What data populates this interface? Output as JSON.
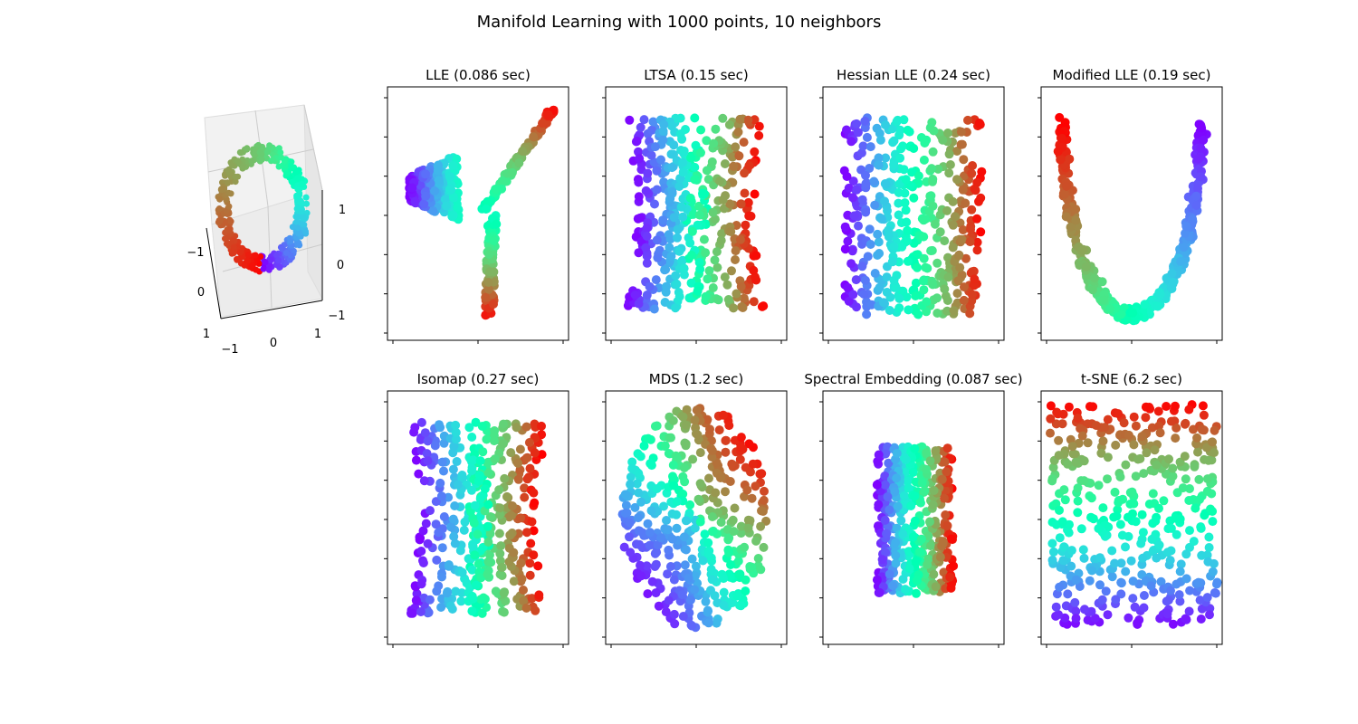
{
  "figure": {
    "suptitle": "Manifold Learning with 1000 points, 10 neighbors"
  },
  "chart_data": [
    {
      "type": "scatter",
      "kind": "3d-scatter",
      "title": "",
      "colormap": "rainbow",
      "axis_ticks": {
        "x": [
          "−1",
          "0",
          "1"
        ],
        "y": [
          "−1",
          "0",
          "1"
        ],
        "z": [
          "−1",
          "0",
          "1"
        ]
      },
      "xlim": [
        -1,
        1
      ],
      "ylim": [
        -1,
        1
      ],
      "zlim": [
        -1,
        1
      ],
      "points": 1000,
      "grid": true
    },
    {
      "type": "scatter",
      "title": "LLE (0.086 sec)",
      "colormap": "rainbow",
      "points": 1000,
      "tick_labels": false,
      "shape": "fan"
    },
    {
      "type": "scatter",
      "title": "LTSA (0.15 sec)",
      "colormap": "rainbow",
      "points": 1000,
      "tick_labels": false,
      "shape": "rect"
    },
    {
      "type": "scatter",
      "title": "Hessian LLE (0.24 sec)",
      "colormap": "rainbow",
      "points": 1000,
      "tick_labels": false,
      "shape": "rect-reversed"
    },
    {
      "type": "scatter",
      "title": "Modified LLE (0.19 sec)",
      "colormap": "rainbow",
      "points": 1000,
      "tick_labels": false,
      "shape": "u"
    },
    {
      "type": "scatter",
      "title": "Isomap (0.27 sec)",
      "colormap": "rainbow",
      "points": 1000,
      "tick_labels": false,
      "shape": "rect"
    },
    {
      "type": "scatter",
      "title": "MDS (1.2 sec)",
      "colormap": "rainbow",
      "points": 1000,
      "tick_labels": false,
      "shape": "ellipse"
    },
    {
      "type": "scatter",
      "title": "Spectral Embedding (0.087 sec)",
      "colormap": "rainbow",
      "points": 1000,
      "tick_labels": false,
      "shape": "narrow"
    },
    {
      "type": "scatter",
      "title": "t-SNE (6.2 sec)",
      "colormap": "rainbow",
      "points": 1000,
      "tick_labels": false,
      "shape": "rect-vertical"
    }
  ]
}
